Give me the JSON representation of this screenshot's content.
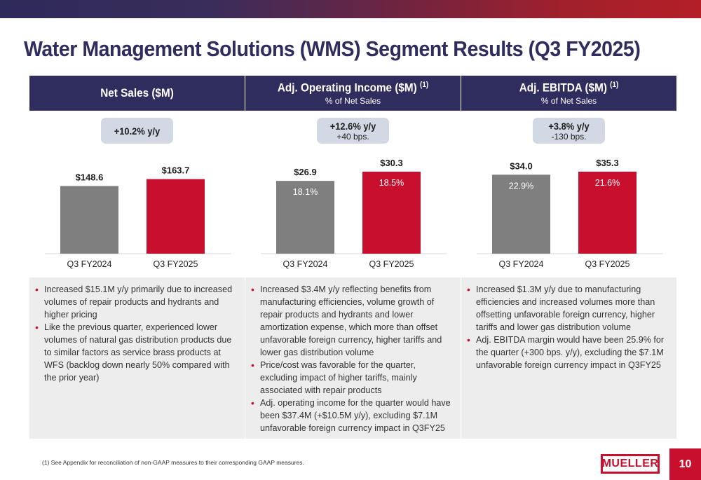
{
  "title": "Water Management Solutions (WMS) Segment Results (Q3 FY2025)",
  "colors": {
    "navy": "#2f2c5e",
    "red": "#c8102e",
    "gray": "#7f7f7f",
    "pill": "#d2d9e4"
  },
  "panels": [
    {
      "heading": "Net Sales ($M)",
      "sup": "",
      "subheading": "",
      "pill_main": "+10.2% y/y",
      "pill_sub": "",
      "bullets": [
        "Increased $15.1M y/y primarily due to increased volumes of repair products and hydrants and higher pricing",
        "Like the previous quarter, experienced lower volumes of natural gas distribution products due to similar factors as service brass products at WFS (backlog down nearly 50% compared with the prior year)"
      ]
    },
    {
      "heading": "Adj. Operating Income ($M)",
      "sup": "(1)",
      "subheading": "% of Net Sales",
      "pill_main": "+12.6% y/y",
      "pill_sub": "+40 bps.",
      "bullets": [
        "Increased $3.4M y/y reflecting benefits from manufacturing efficiencies, volume growth of repair products and hydrants and lower amortization expense, which more than offset unfavorable foreign currency, higher tariffs and lower gas distribution volume",
        "Price/cost was favorable for the quarter, excluding impact of higher tariffs, mainly associated with repair products",
        "Adj. operating income for the quarter would have been $37.4M (+$10.5M y/y), excluding $7.1M unfavorable foreign currency impact in Q3FY25"
      ]
    },
    {
      "heading": "Adj. EBITDA ($M)",
      "sup": "(1)",
      "subheading": "% of Net Sales",
      "pill_main": "+3.8% y/y",
      "pill_sub": "-130 bps.",
      "bullets": [
        "Increased $1.3M y/y due to manufacturing efficiencies and increased volumes more than offsetting unfavorable foreign currency, higher tariffs and lower gas distribution volume",
        "Adj. EBITDA margin would have been 25.9% for the quarter (+300 bps. y/y), excluding the $7.1M unfavorable foreign currency impact in Q3FY25"
      ]
    }
  ],
  "chart_data": [
    {
      "type": "bar",
      "categories": [
        "Q3 FY2024",
        "Q3 FY2025"
      ],
      "values": [
        148.6,
        163.7
      ],
      "value_labels": [
        "$148.6",
        "$163.7"
      ],
      "inner_labels": [
        "",
        ""
      ],
      "bar_colors": [
        "#7f7f7f",
        "#c8102e"
      ],
      "ylim": [
        0,
        180
      ]
    },
    {
      "type": "bar",
      "categories": [
        "Q3 FY2024",
        "Q3 FY2025"
      ],
      "values": [
        26.9,
        30.3
      ],
      "value_labels": [
        "$26.9",
        "$30.3"
      ],
      "inner_labels": [
        "18.1%",
        "18.5%"
      ],
      "bar_colors": [
        "#7f7f7f",
        "#c8102e"
      ],
      "ylim": [
        0,
        30.3
      ]
    },
    {
      "type": "bar",
      "categories": [
        "Q3 FY2024",
        "Q3 FY2025"
      ],
      "values": [
        34.0,
        35.3
      ],
      "value_labels": [
        "$34.0",
        "$35.3"
      ],
      "inner_labels": [
        "22.9%",
        "21.6%"
      ],
      "bar_colors": [
        "#7f7f7f",
        "#c8102e"
      ],
      "ylim": [
        0,
        35.3
      ]
    }
  ],
  "footnote": "(1)  See Appendix for reconciliation of non-GAAP measures to their corresponding GAAP measures.",
  "logo_text": "MUELLER",
  "page_number": "10"
}
